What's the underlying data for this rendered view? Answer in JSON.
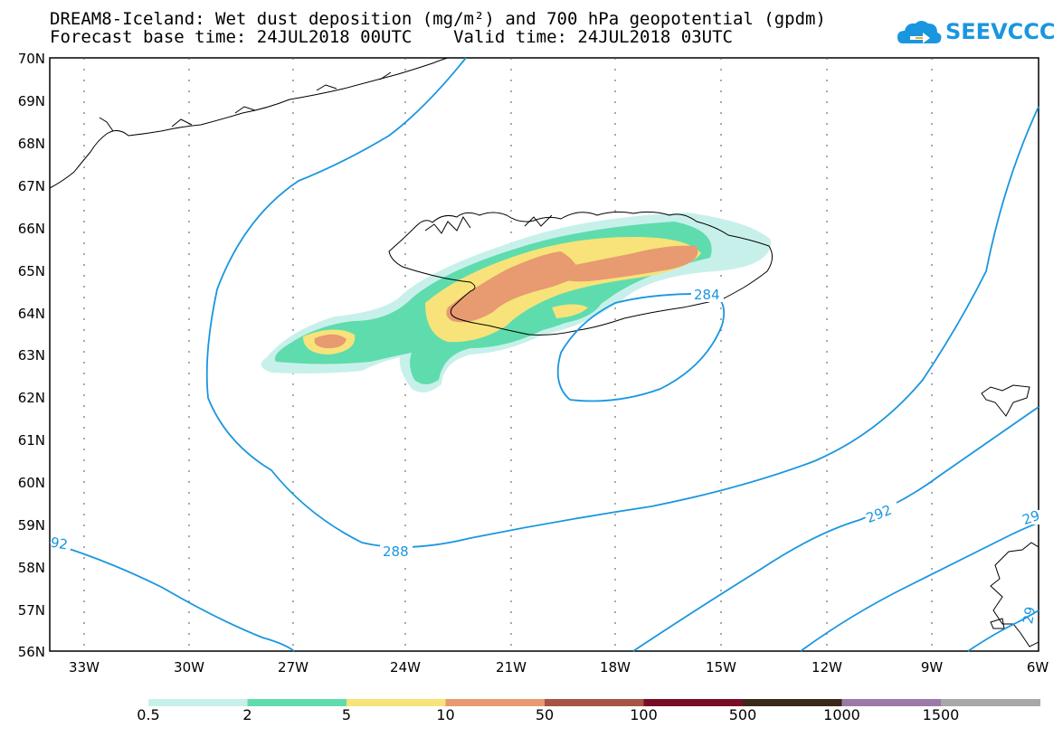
{
  "title": {
    "line1": "DREAM8-Iceland: Wet dust deposition (mg/m²) and 700 hPa geopotential (gpdm)",
    "line2": "Forecast base time: 24JUL2018 00UTC    Valid time: 24JUL2018 03UTC"
  },
  "logo": {
    "text": "SEEVCCC",
    "icon": "cloud-arrow-icon",
    "color": "#1a96e0"
  },
  "map": {
    "lat_labels": [
      "70N",
      "69N",
      "68N",
      "67N",
      "66N",
      "65N",
      "64N",
      "63N",
      "62N",
      "61N",
      "60N",
      "59N",
      "58N",
      "57N",
      "56N"
    ],
    "lon_labels": [
      "33W",
      "30W",
      "27W",
      "24W",
      "21W",
      "18W",
      "15W",
      "12W",
      "9W",
      "6W"
    ],
    "contour_labels": [
      "284",
      "288",
      "292",
      "92",
      "29",
      "29"
    ],
    "contour_color": "#1a96e0"
  },
  "legend": {
    "labels": [
      "0.5",
      "2",
      "5",
      "10",
      "50",
      "100",
      "500",
      "1000",
      "1500"
    ],
    "colors": [
      "#c8f0ea",
      "#5edcad",
      "#f7e37a",
      "#e89a70",
      "#a65444",
      "#7a0d26",
      "#3a2818",
      "#9b7aa8",
      "#a8a8a8"
    ]
  }
}
